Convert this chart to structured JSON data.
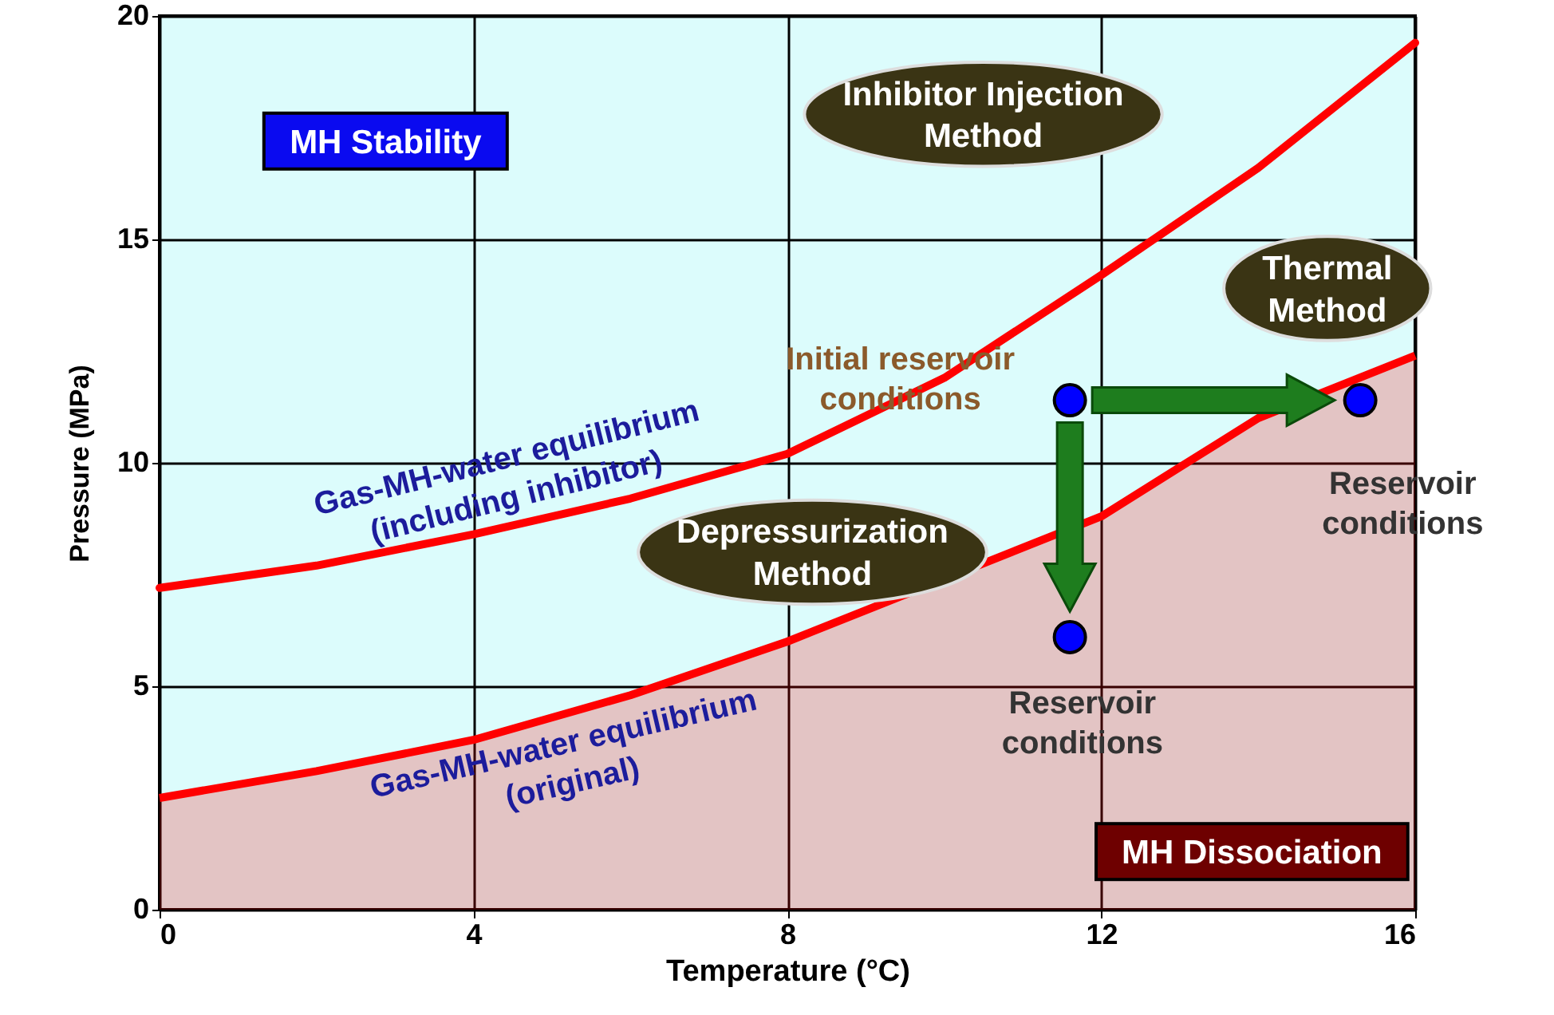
{
  "chart_data": {
    "type": "line",
    "xlabel": "Temperature (°C)",
    "ylabel": "Pressure (MPa)",
    "xlim": [
      0,
      16
    ],
    "ylim": [
      0,
      20
    ],
    "xticks": [
      0,
      4,
      8,
      12,
      16
    ],
    "yticks": [
      0,
      5,
      10,
      15,
      20
    ],
    "grid": true,
    "series": [
      {
        "color": "#ff0000",
        "x": [
          0,
          2,
          4,
          6,
          8,
          10,
          12,
          14,
          16
        ],
        "values": [
          7.2,
          7.7,
          8.4,
          9.2,
          10.2,
          11.9,
          14.2,
          16.6,
          19.4
        ]
      },
      {
        "type": "area",
        "color": "#ff0000",
        "x": [
          0,
          2,
          4,
          6,
          8,
          12,
          13,
          14,
          16
        ],
        "values": [
          2.5,
          3.1,
          3.8,
          4.8,
          6.0,
          8.8,
          9.9,
          11.0,
          12.4
        ]
      },
      {
        "type": "scatter",
        "color": "#0000ff",
        "marker": "circle",
        "x": [
          11.6,
          11.6,
          15.3
        ],
        "values": [
          11.4,
          6.1,
          11.4
        ]
      }
    ],
    "annotations": [
      "MH Stability",
      "Inhibitor Injection\nMethod",
      "Thermal\nMethod",
      "Depressurization\nMethod",
      "Initial reservoir\nconditions",
      "Reservoir\nconditions",
      "Reservoir\nconditions",
      "Gas-MH-water equilibrium\n(including inhibitor)",
      "Gas-MH-water equilibrium\n(original)",
      "MH Dissociation"
    ]
  }
}
